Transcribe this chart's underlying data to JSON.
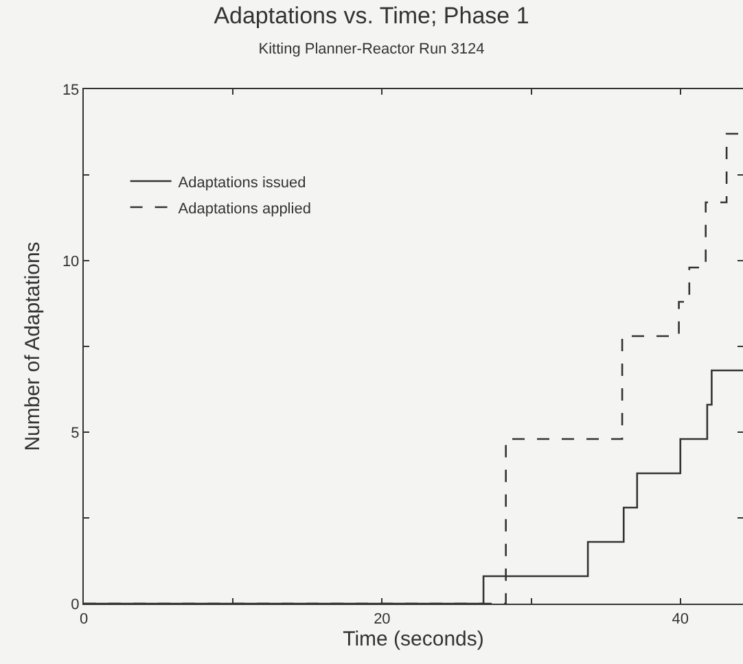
{
  "chart_data": {
    "type": "step",
    "title": "Adaptations vs. Time; Phase 1",
    "subtitle": "Kitting Planner-Reactor Run 3124",
    "xlabel": "Time (seconds)",
    "ylabel": "Number of Adaptations",
    "series": [
      {
        "name": "Adaptations issued",
        "color": "#333333",
        "line_style": "solid",
        "x": [
          0,
          26.8,
          33.8,
          36.2,
          37.1,
          40.0,
          41.8,
          42.1,
          44.2
        ],
        "values": [
          0,
          0.8,
          1.8,
          2.8,
          3.8,
          4.8,
          5.8,
          6.8,
          6.8
        ]
      },
      {
        "name": "Adaptations applied",
        "color": "#333333",
        "line_style": "dashed",
        "x": [
          0,
          28.3,
          36.1,
          39.9,
          40.6,
          41.7,
          43.1,
          44.2
        ],
        "values": [
          0,
          4.8,
          7.8,
          8.8,
          9.8,
          11.7,
          13.7,
          13.7
        ]
      }
    ],
    "xlim": [
      0,
      44.2
    ],
    "xticks": [
      0,
      {
        "value": 10,
        "label": null
      },
      20,
      {
        "value": 30,
        "label": null
      },
      40
    ],
    "ylim": [
      0,
      15
    ],
    "yticks": [
      0,
      {
        "value": 2.5,
        "label": null
      },
      5,
      {
        "value": 7.5,
        "label": null
      },
      10,
      {
        "value": 12.5,
        "label": null
      },
      15
    ],
    "grid": false,
    "legend": "top left",
    "marker": "none"
  }
}
